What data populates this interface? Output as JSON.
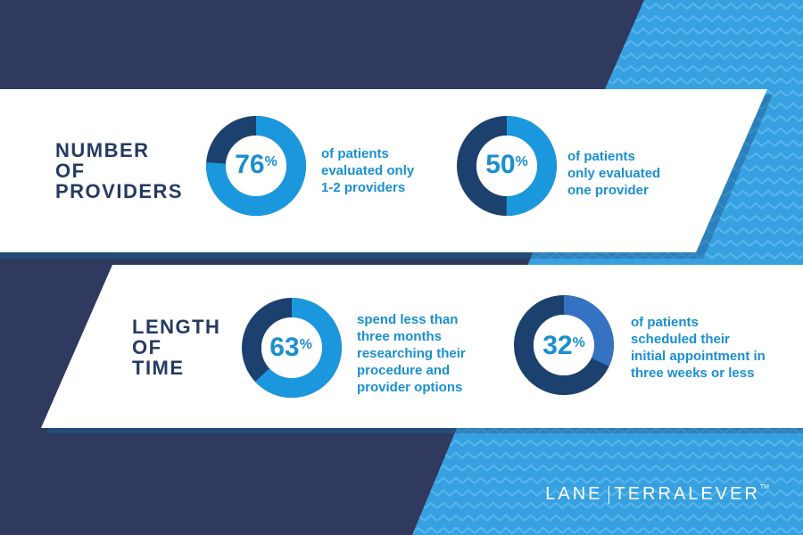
{
  "colors": {
    "navy": "#2f3a5e",
    "blue_pattern": "#3aa3e3",
    "ring_dark": "#1c416e",
    "ring_light": "#1b98dd",
    "ring_mid": "#3573c2",
    "text_blue": "#1a8fd0",
    "title_navy": "#263a63"
  },
  "sections": [
    {
      "title_lines": [
        "NUMBER",
        "OF",
        "PROVIDERS"
      ]
    },
    {
      "title_lines": [
        "LENGTH",
        "OF",
        "TIME"
      ]
    }
  ],
  "stats": [
    {
      "value": "76",
      "unit": "%",
      "lines": [
        "of patients",
        "evaluated only",
        "1-2 providers"
      ]
    },
    {
      "value": "50",
      "unit": "%",
      "lines": [
        "of patients",
        "only evaluated",
        "one provider"
      ]
    },
    {
      "value": "63",
      "unit": "%",
      "lines": [
        "spend less than",
        "three months",
        "researching their",
        "procedure and",
        "provider options"
      ]
    },
    {
      "value": "32",
      "unit": "%",
      "lines": [
        "of patients",
        "scheduled their",
        "initial appointment in",
        "three weeks or less"
      ]
    }
  ],
  "logo": {
    "left": "LANE",
    "right": "TERRALEVER",
    "tm": "TM"
  },
  "chart_data": {
    "type": "pie",
    "charts": [
      {
        "section": "NUMBER OF PROVIDERS",
        "value": 76,
        "remainder": 24
      },
      {
        "section": "NUMBER OF PROVIDERS",
        "value": 50,
        "remainder": 50
      },
      {
        "section": "LENGTH OF TIME",
        "value": 63,
        "remainder": 37
      },
      {
        "section": "LENGTH OF TIME",
        "value": 32,
        "remainder": 68
      }
    ]
  }
}
